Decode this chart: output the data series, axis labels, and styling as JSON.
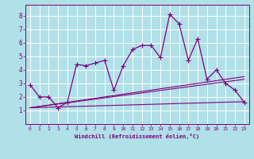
{
  "xlabel": "Windchill (Refroidissement éolien,°C)",
  "bg_color": "#b0e0e8",
  "line_color": "#800080",
  "grid_color": "#ffffff",
  "xlim": [
    -0.5,
    23.5
  ],
  "ylim": [
    0,
    8.8
  ],
  "xticks": [
    0,
    1,
    2,
    3,
    4,
    5,
    6,
    7,
    8,
    9,
    10,
    11,
    12,
    13,
    14,
    15,
    16,
    17,
    18,
    19,
    20,
    21,
    22,
    23
  ],
  "yticks": [
    1,
    2,
    3,
    4,
    5,
    6,
    7,
    8
  ],
  "main_x": [
    0,
    1,
    2,
    3,
    4,
    5,
    6,
    7,
    8,
    9,
    10,
    11,
    12,
    13,
    14,
    15,
    16,
    17,
    18,
    19,
    20,
    21,
    22,
    23
  ],
  "main_y": [
    2.9,
    2.0,
    2.0,
    1.2,
    1.6,
    4.4,
    4.3,
    4.5,
    4.7,
    2.5,
    4.3,
    5.5,
    5.8,
    5.8,
    4.9,
    8.1,
    7.4,
    4.7,
    6.3,
    3.3,
    4.0,
    3.0,
    2.5,
    1.6
  ],
  "line2_x": [
    0,
    23
  ],
  "line2_y": [
    1.2,
    3.3
  ],
  "line3_x": [
    0,
    23
  ],
  "line3_y": [
    1.2,
    3.5
  ],
  "line4_x": [
    0,
    23
  ],
  "line4_y": [
    1.2,
    1.65
  ]
}
